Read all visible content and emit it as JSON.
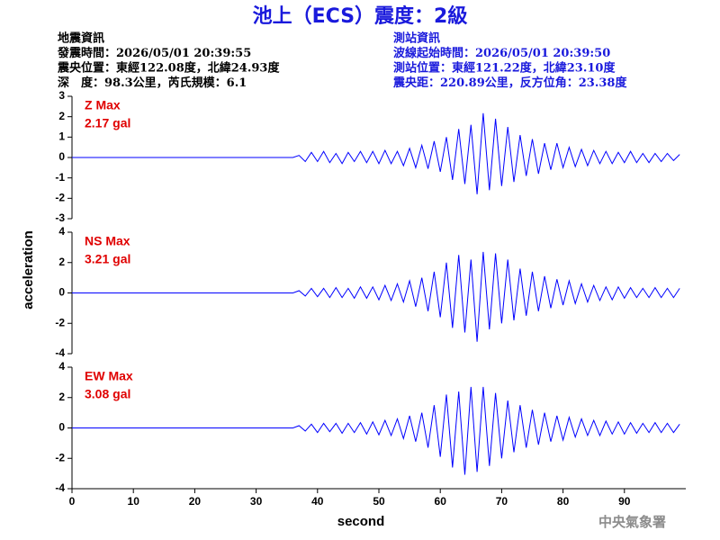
{
  "header": {
    "title": "池上（ECS）震度：2級",
    "left": [
      "地震資訊",
      "發震時間：2026/05/01 20:39:55",
      "震央位置：東經122.08度，北緯24.93度",
      "深　度：98.3公里，芮氏規模：6.1"
    ],
    "right": [
      "測站資訊",
      "波線起始時間：2026/05/01 20:39:50",
      "測站位置：東經121.22度，北緯23.10度",
      "震央距：220.89公里，反方位角：23.38度"
    ]
  },
  "footer": "中央氣象署",
  "chart_data": [
    {
      "type": "line",
      "color": "#0000ff",
      "max_label": "Z Max",
      "max_text": "2.17 gal",
      "xlim": [
        0,
        100
      ],
      "ylim": [
        -3,
        3
      ],
      "yticks": [
        -3,
        -2,
        -1,
        0,
        1,
        2,
        3
      ],
      "x": [
        0,
        36,
        37,
        38,
        39,
        40,
        41,
        42,
        43,
        44,
        45,
        46,
        47,
        48,
        49,
        50,
        51,
        52,
        53,
        54,
        55,
        56,
        57,
        58,
        59,
        60,
        61,
        62,
        63,
        64,
        65,
        66,
        67,
        68,
        69,
        70,
        71,
        72,
        73,
        74,
        75,
        76,
        77,
        78,
        79,
        80,
        81,
        82,
        83,
        84,
        85,
        86,
        87,
        88,
        89,
        90,
        91,
        92,
        93,
        94,
        95,
        96,
        97,
        98,
        99
      ],
      "values": [
        0,
        0,
        0.1,
        -0.2,
        0.25,
        -0.2,
        0.3,
        -0.25,
        0.2,
        -0.3,
        0.25,
        -0.2,
        0.3,
        -0.25,
        0.3,
        -0.3,
        0.35,
        -0.3,
        0.3,
        -0.4,
        0.45,
        -0.5,
        0.6,
        -0.55,
        0.8,
        -0.7,
        1.0,
        -1.1,
        1.4,
        -1.3,
        1.6,
        -1.8,
        2.17,
        -1.6,
        1.9,
        -1.4,
        1.5,
        -1.2,
        1.1,
        -0.9,
        0.9,
        -0.8,
        0.7,
        -0.6,
        0.7,
        -0.5,
        0.5,
        -0.45,
        0.4,
        -0.4,
        0.35,
        -0.3,
        0.3,
        -0.3,
        0.25,
        -0.25,
        0.3,
        -0.25,
        0.2,
        -0.25,
        0.2,
        -0.2,
        0.2,
        -0.15,
        0.15
      ]
    },
    {
      "type": "line",
      "color": "#0000ff",
      "max_label": "NS Max",
      "max_text": "3.21 gal",
      "ylabel": "acceleration",
      "xlim": [
        0,
        100
      ],
      "ylim": [
        -4,
        4
      ],
      "yticks": [
        -4,
        -2,
        0,
        2,
        4
      ],
      "x": [
        0,
        36,
        37,
        38,
        39,
        40,
        41,
        42,
        43,
        44,
        45,
        46,
        47,
        48,
        49,
        50,
        51,
        52,
        53,
        54,
        55,
        56,
        57,
        58,
        59,
        60,
        61,
        62,
        63,
        64,
        65,
        66,
        67,
        68,
        69,
        70,
        71,
        72,
        73,
        74,
        75,
        76,
        77,
        78,
        79,
        80,
        81,
        82,
        83,
        84,
        85,
        86,
        87,
        88,
        89,
        90,
        91,
        92,
        93,
        94,
        95,
        96,
        97,
        98,
        99
      ],
      "values": [
        0,
        0,
        0.15,
        -0.2,
        0.3,
        -0.25,
        0.3,
        -0.3,
        0.35,
        -0.3,
        0.3,
        -0.35,
        0.4,
        -0.35,
        0.4,
        -0.45,
        0.5,
        -0.5,
        0.6,
        -0.6,
        0.8,
        -0.9,
        1.0,
        -1.2,
        1.4,
        -1.6,
        2.0,
        -2.3,
        2.5,
        -2.6,
        2.2,
        -3.21,
        2.7,
        -2.4,
        2.6,
        -2.0,
        2.2,
        -1.8,
        1.6,
        -1.5,
        1.4,
        -1.2,
        1.1,
        -1.0,
        0.9,
        -0.8,
        0.8,
        -0.7,
        0.6,
        -0.6,
        0.5,
        -0.5,
        0.4,
        -0.45,
        0.4,
        -0.35,
        0.35,
        -0.3,
        0.3,
        -0.3,
        0.35,
        -0.3,
        0.3,
        -0.3,
        0.3
      ]
    },
    {
      "type": "line",
      "color": "#0000ff",
      "max_label": "EW Max",
      "max_text": "3.08 gal",
      "xlabel": "second",
      "xlim": [
        0,
        100
      ],
      "xticks": [
        0,
        10,
        20,
        30,
        40,
        50,
        60,
        70,
        80,
        90
      ],
      "ylim": [
        -4,
        4
      ],
      "yticks": [
        -4,
        -2,
        0,
        2,
        4
      ],
      "x": [
        0,
        36,
        37,
        38,
        39,
        40,
        41,
        42,
        43,
        44,
        45,
        46,
        47,
        48,
        49,
        50,
        51,
        52,
        53,
        54,
        55,
        56,
        57,
        58,
        59,
        60,
        61,
        62,
        63,
        64,
        65,
        66,
        67,
        68,
        69,
        70,
        71,
        72,
        73,
        74,
        75,
        76,
        77,
        78,
        79,
        80,
        81,
        82,
        83,
        84,
        85,
        86,
        87,
        88,
        89,
        90,
        91,
        92,
        93,
        94,
        95,
        96,
        97,
        98,
        99
      ],
      "values": [
        0,
        0,
        0.15,
        -0.2,
        0.25,
        -0.3,
        0.3,
        -0.25,
        0.3,
        -0.35,
        0.3,
        -0.3,
        0.35,
        -0.4,
        0.4,
        -0.45,
        0.5,
        -0.5,
        0.6,
        -0.7,
        0.8,
        -0.9,
        1.0,
        -1.3,
        1.5,
        -1.9,
        2.2,
        -2.6,
        2.4,
        -3.08,
        2.7,
        -2.9,
        2.7,
        -2.5,
        2.3,
        -2.0,
        1.8,
        -1.6,
        1.5,
        -1.3,
        1.2,
        -1.1,
        1.0,
        -0.9,
        0.8,
        -0.8,
        0.7,
        -0.6,
        0.6,
        -0.5,
        0.5,
        -0.5,
        0.45,
        -0.4,
        0.4,
        -0.4,
        0.35,
        -0.35,
        0.3,
        -0.3,
        0.35,
        -0.3,
        0.3,
        -0.3,
        0.25
      ]
    }
  ]
}
